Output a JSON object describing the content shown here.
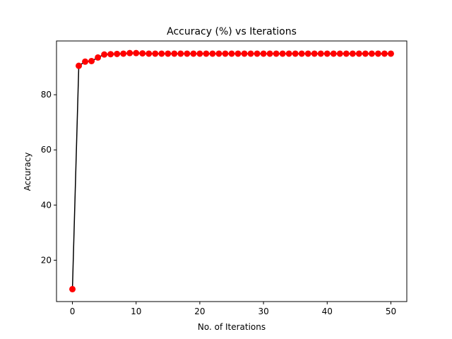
{
  "chart_data": {
    "type": "line",
    "title": "Accuracy (%) vs Iterations",
    "xlabel": "No. of Iterations",
    "ylabel": "Accuracy",
    "xlim": [
      -2.5,
      52.5
    ],
    "ylim": [
      5,
      99.5
    ],
    "xticks": [
      0,
      10,
      20,
      30,
      40,
      50
    ],
    "yticks": [
      20,
      40,
      60,
      80
    ],
    "grid": false,
    "line_color": "#000000",
    "marker_color": "#ff0000",
    "series": [
      {
        "x": [
          0,
          1,
          2,
          3,
          4,
          5,
          6,
          7,
          8,
          9,
          10,
          11,
          12,
          13,
          14,
          15,
          16,
          17,
          18,
          19,
          20,
          21,
          22,
          23,
          24,
          25,
          26,
          27,
          28,
          29,
          30,
          31,
          32,
          33,
          34,
          35,
          36,
          37,
          38,
          39,
          40,
          41,
          42,
          43,
          44,
          45,
          46,
          47,
          48,
          49,
          50
        ],
        "values": [
          9.5,
          90.5,
          92.0,
          92.2,
          93.5,
          94.6,
          94.7,
          94.8,
          94.9,
          95.1,
          95.1,
          95.0,
          94.9,
          94.9,
          94.9,
          94.9,
          94.9,
          94.9,
          94.9,
          94.9,
          94.9,
          94.9,
          94.9,
          94.9,
          94.9,
          94.9,
          94.9,
          94.9,
          94.9,
          94.9,
          94.9,
          94.9,
          94.9,
          94.9,
          94.9,
          94.9,
          94.9,
          94.9,
          94.9,
          94.9,
          94.9,
          94.9,
          94.9,
          94.9,
          94.9,
          94.9,
          94.9,
          94.9,
          94.9,
          94.9,
          94.9
        ]
      }
    ]
  }
}
